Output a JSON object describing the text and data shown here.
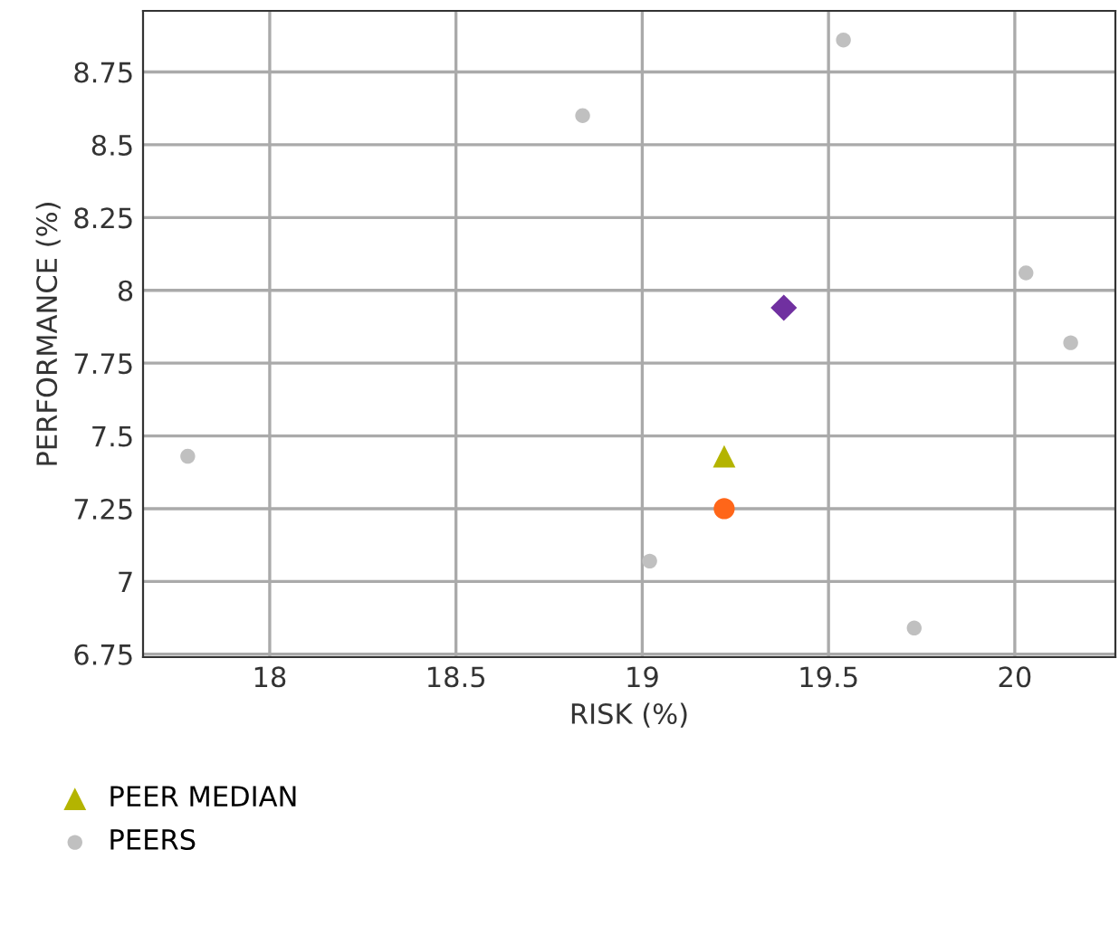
{
  "chart_data": {
    "type": "scatter",
    "xlabel": "RISK (%)",
    "ylabel": "PERFORMANCE (%)",
    "xlim": [
      17.66,
      20.27
    ],
    "ylim": [
      6.74,
      8.96
    ],
    "xticks": [
      18,
      18.5,
      19,
      19.5,
      20
    ],
    "yticks": [
      6.75,
      7,
      7.25,
      7.5,
      7.75,
      8,
      8.25,
      8.5,
      8.75
    ],
    "grid": true,
    "legend": "bottom",
    "series": [
      {
        "color": "#ff6619",
        "marker": "circle",
        "x": [
          19.22
        ],
        "values": [
          7.25
        ]
      },
      {
        "color": "#7030a0",
        "marker": "diamond",
        "x": [
          19.38
        ],
        "values": [
          7.94
        ]
      },
      {
        "name": "PEER MEDIAN",
        "color": "#b4b400",
        "marker": "triangle",
        "x": [
          19.22
        ],
        "values": [
          7.43
        ]
      },
      {
        "name": "PEERS",
        "color": "#c0c0c0",
        "marker": "circle",
        "x": [
          17.78,
          18.84,
          19.54,
          20.03,
          20.15,
          19.02,
          19.73
        ],
        "values": [
          7.43,
          8.6,
          8.86,
          8.06,
          7.82,
          7.07,
          6.84
        ]
      }
    ]
  }
}
